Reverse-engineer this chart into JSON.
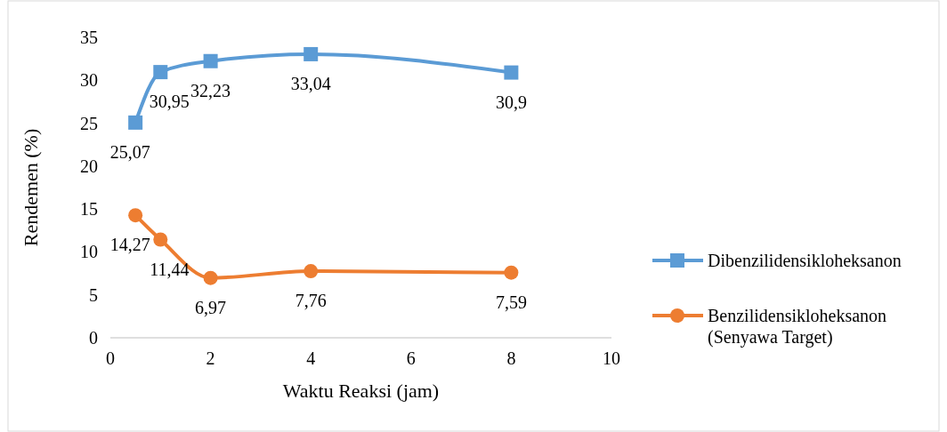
{
  "chart_data": {
    "type": "line",
    "xlabel": "Waktu Reaksi (jam)",
    "ylabel": "Rendemen (%)",
    "x": [
      0.5,
      1,
      2,
      4,
      8
    ],
    "xlim": [
      0,
      10
    ],
    "xticks": [
      0,
      2,
      4,
      6,
      8,
      10
    ],
    "ylim": [
      0,
      35
    ],
    "yticks": [
      0,
      5,
      10,
      15,
      20,
      25,
      30,
      35
    ],
    "legend": "right",
    "grid": false,
    "line_style": "solid",
    "series": [
      {
        "name": "Dibenzilidensikloheksanon",
        "color": "#5b9bd5",
        "marker": "square",
        "values": [
          25.07,
          30.95,
          32.23,
          33.04,
          30.9
        ],
        "value_labels": [
          "25,07",
          "30,95",
          "32,23",
          "33,04",
          "30,9"
        ]
      },
      {
        "name": "Benzilidensikloheksanon (Senyawa Target)",
        "color": "#ed7d31",
        "marker": "circle",
        "values": [
          14.27,
          11.44,
          6.97,
          7.76,
          7.59
        ],
        "value_labels": [
          "14,27",
          "11,44",
          "6,97",
          "7,76",
          "7,59"
        ]
      }
    ]
  }
}
